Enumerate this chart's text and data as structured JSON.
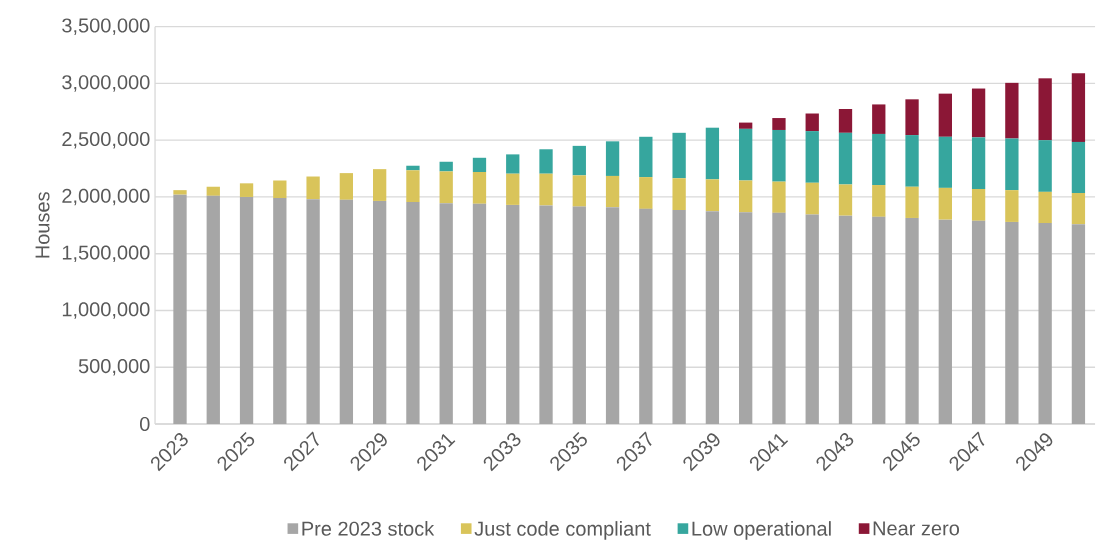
{
  "chart_data": {
    "type": "bar",
    "stacked": true,
    "ylabel": "Houses",
    "categories": [
      "2023",
      null,
      "2025",
      null,
      "2027",
      null,
      "2029",
      null,
      "2031",
      null,
      "2033",
      null,
      "2035",
      null,
      "2037",
      null,
      "2039",
      null,
      "2041",
      null,
      "2043",
      null,
      "2045",
      null,
      "2047",
      null,
      "2049",
      null
    ],
    "series": [
      {
        "name": "Pre 2023 stock",
        "color": "#a6a6a6",
        "values": [
          2020000,
          2010000,
          2000000,
          1990000,
          1980000,
          1975000,
          1965000,
          1955000,
          1945000,
          1940000,
          1930000,
          1925000,
          1915000,
          1910000,
          1895000,
          1885000,
          1875000,
          1865000,
          1860000,
          1845000,
          1835000,
          1825000,
          1815000,
          1800000,
          1790000,
          1780000,
          1770000,
          1760000
        ]
      },
      {
        "name": "Just code compliant",
        "color": "#d9c45a",
        "values": [
          40000,
          80000,
          120000,
          155000,
          200000,
          235000,
          280000,
          280000,
          280000,
          280000,
          275000,
          280000,
          275000,
          275000,
          280000,
          280000,
          280000,
          280000,
          275000,
          280000,
          275000,
          280000,
          275000,
          280000,
          280000,
          280000,
          275000,
          275000
        ]
      },
      {
        "name": "Low operational",
        "color": "#36a69e",
        "values": [
          null,
          null,
          null,
          null,
          null,
          null,
          null,
          40000,
          85000,
          125000,
          170000,
          215000,
          260000,
          305000,
          355000,
          400000,
          455000,
          455000,
          455000,
          455000,
          455000,
          450000,
          455000,
          450000,
          455000,
          455000,
          455000,
          450000
        ]
      },
      {
        "name": "Near zero",
        "color": "#8b1736",
        "values": [
          null,
          null,
          null,
          null,
          null,
          null,
          null,
          null,
          null,
          null,
          null,
          null,
          null,
          null,
          null,
          null,
          null,
          55000,
          105000,
          155000,
          210000,
          260000,
          315000,
          380000,
          430000,
          490000,
          545000,
          605000
        ]
      }
    ],
    "ylim": [
      0,
      3500000
    ],
    "yticks": [
      {
        "value": 0,
        "label": "0"
      },
      {
        "value": 500000,
        "label": "500,000"
      },
      {
        "value": 1000000,
        "label": "1,000,000"
      },
      {
        "value": 1500000,
        "label": "1,500,000"
      },
      {
        "value": 2000000,
        "label": "2,000,000"
      },
      {
        "value": 2500000,
        "label": "2,500,000"
      },
      {
        "value": 3000000,
        "label": "3,000,000"
      },
      {
        "value": 3500000,
        "label": "3,500,000"
      }
    ],
    "grid": "y",
    "legend": "bottom"
  }
}
